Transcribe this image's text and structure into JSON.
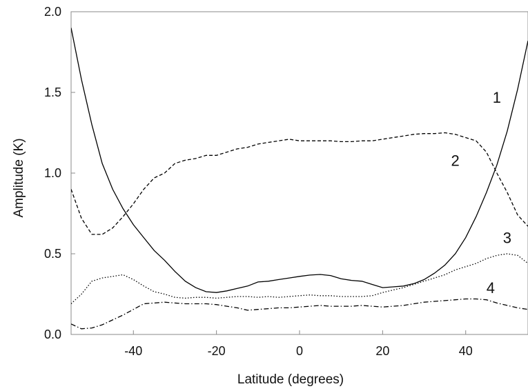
{
  "chart_data": {
    "type": "line",
    "title": "",
    "xlabel": "Latitude (degrees)",
    "ylabel": "Amplitude (K)",
    "xlim": [
      -55,
      55
    ],
    "ylim": [
      0,
      2
    ],
    "x_ticks": [
      -40,
      -20,
      0,
      20,
      40
    ],
    "x_tick_labels": [
      "-40",
      "-20",
      "0",
      "20",
      "40"
    ],
    "y_ticks": [
      0,
      0.5,
      1,
      1.5,
      2
    ],
    "y_tick_labels": [
      "0.0",
      "0.5",
      "1.0",
      "1.5",
      "2.0"
    ],
    "grid": false,
    "legend": "none",
    "series": [
      {
        "name": "1",
        "line_style": "solid",
        "color": "#000000",
        "x": [
          -55,
          -52.5,
          -50,
          -47.5,
          -45,
          -42.5,
          -40,
          -37.5,
          -35,
          -32.5,
          -30,
          -27.5,
          -25,
          -22.5,
          -20,
          -17.5,
          -15,
          -12.5,
          -10,
          -7.5,
          -5,
          -2.5,
          0,
          2.5,
          5,
          7.5,
          10,
          12.5,
          15,
          17.5,
          20,
          22.5,
          25,
          27.5,
          30,
          32.5,
          35,
          37.5,
          40,
          42.5,
          45,
          47.5,
          50,
          52.5,
          55
        ],
        "y": [
          1.9,
          1.58,
          1.3,
          1.06,
          0.9,
          0.78,
          0.68,
          0.6,
          0.52,
          0.46,
          0.39,
          0.33,
          0.29,
          0.265,
          0.26,
          0.27,
          0.285,
          0.3,
          0.325,
          0.33,
          0.34,
          0.35,
          0.36,
          0.368,
          0.372,
          0.365,
          0.345,
          0.335,
          0.33,
          0.31,
          0.29,
          0.295,
          0.3,
          0.315,
          0.34,
          0.38,
          0.43,
          0.5,
          0.6,
          0.73,
          0.88,
          1.05,
          1.26,
          1.52,
          1.82
        ]
      },
      {
        "name": "2",
        "line_style": "dashed",
        "color": "#000000",
        "x": [
          -55,
          -52.5,
          -50,
          -47.5,
          -45,
          -42.5,
          -40,
          -37.5,
          -35,
          -32.5,
          -30,
          -27.5,
          -25,
          -22.5,
          -20,
          -17.5,
          -15,
          -12.5,
          -10,
          -7.5,
          -5,
          -2.5,
          0,
          2.5,
          5,
          7.5,
          10,
          12.5,
          15,
          17.5,
          20,
          22.5,
          25,
          27.5,
          30,
          32.5,
          35,
          37.5,
          40,
          42.5,
          45,
          47.5,
          50,
          52.5,
          55
        ],
        "y": [
          0.9,
          0.72,
          0.62,
          0.62,
          0.66,
          0.73,
          0.81,
          0.9,
          0.97,
          1.0,
          1.06,
          1.08,
          1.09,
          1.11,
          1.11,
          1.13,
          1.15,
          1.16,
          1.18,
          1.19,
          1.2,
          1.21,
          1.2,
          1.2,
          1.2,
          1.2,
          1.195,
          1.195,
          1.2,
          1.2,
          1.21,
          1.22,
          1.23,
          1.24,
          1.245,
          1.245,
          1.25,
          1.24,
          1.22,
          1.2,
          1.13,
          1.0,
          0.88,
          0.74,
          0.67
        ]
      },
      {
        "name": "3",
        "line_style": "dotted",
        "color": "#000000",
        "x": [
          -55,
          -52.5,
          -50,
          -47.5,
          -45,
          -42.5,
          -40,
          -37.5,
          -35,
          -32.5,
          -30,
          -27.5,
          -25,
          -22.5,
          -20,
          -17.5,
          -15,
          -12.5,
          -10,
          -7.5,
          -5,
          -2.5,
          0,
          2.5,
          5,
          7.5,
          10,
          12.5,
          15,
          17.5,
          20,
          22.5,
          25,
          27.5,
          30,
          32.5,
          35,
          37.5,
          40,
          42.5,
          45,
          47.5,
          50,
          52.5,
          55
        ],
        "y": [
          0.19,
          0.25,
          0.33,
          0.35,
          0.36,
          0.37,
          0.34,
          0.3,
          0.265,
          0.25,
          0.23,
          0.225,
          0.23,
          0.23,
          0.225,
          0.23,
          0.235,
          0.235,
          0.23,
          0.235,
          0.23,
          0.235,
          0.24,
          0.245,
          0.24,
          0.24,
          0.235,
          0.235,
          0.235,
          0.24,
          0.26,
          0.275,
          0.29,
          0.31,
          0.33,
          0.35,
          0.37,
          0.4,
          0.42,
          0.44,
          0.47,
          0.49,
          0.5,
          0.49,
          0.44
        ]
      },
      {
        "name": "4",
        "line_style": "dash-dot",
        "color": "#000000",
        "x": [
          -55,
          -52.5,
          -50,
          -47.5,
          -45,
          -42.5,
          -40,
          -37.5,
          -35,
          -32.5,
          -30,
          -27.5,
          -25,
          -22.5,
          -20,
          -17.5,
          -15,
          -12.5,
          -10,
          -7.5,
          -5,
          -2.5,
          0,
          2.5,
          5,
          7.5,
          10,
          12.5,
          15,
          17.5,
          20,
          22.5,
          25,
          27.5,
          30,
          32.5,
          35,
          37.5,
          40,
          42.5,
          45,
          47.5,
          50,
          52.5,
          55
        ],
        "y": [
          0.065,
          0.035,
          0.04,
          0.06,
          0.09,
          0.12,
          0.155,
          0.19,
          0.195,
          0.2,
          0.195,
          0.19,
          0.19,
          0.19,
          0.185,
          0.175,
          0.165,
          0.15,
          0.155,
          0.16,
          0.165,
          0.165,
          0.17,
          0.175,
          0.18,
          0.175,
          0.175,
          0.175,
          0.18,
          0.175,
          0.17,
          0.175,
          0.18,
          0.19,
          0.2,
          0.205,
          0.21,
          0.215,
          0.22,
          0.22,
          0.215,
          0.195,
          0.18,
          0.165,
          0.155
        ]
      }
    ],
    "annotations": [
      {
        "text": "1",
        "x": 47.5,
        "y": 1.47
      },
      {
        "text": "2",
        "x": 37.5,
        "y": 1.08
      },
      {
        "text": "3",
        "x": 50,
        "y": 0.6
      },
      {
        "text": "4",
        "x": 46,
        "y": 0.29
      }
    ]
  }
}
